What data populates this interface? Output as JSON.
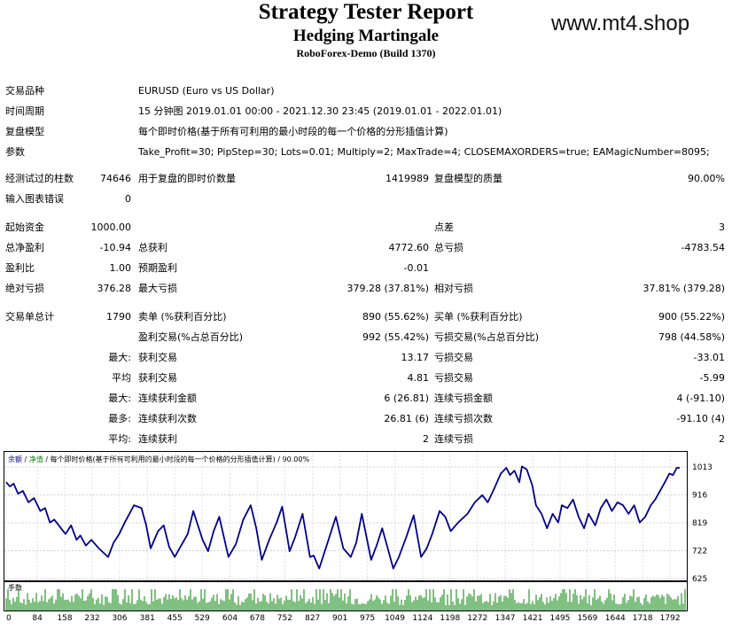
{
  "header": {
    "title": "Strategy Tester Report",
    "ea_name": "Hedging Martingale",
    "server": "RoboForex-Demo (Build 1370)",
    "watermark": "www.mt4.shop"
  },
  "info": {
    "symbol_label": "交易品种",
    "symbol_value": "EURUSD (Euro vs US Dollar)",
    "period_label": "时间周期",
    "period_value": "15 分钟图 2019.01.01 00:00 - 2021.12.30 23:45 (2019.01.01 - 2022.01.01)",
    "model_label": "复盘模型",
    "model_value": "每个即时价格(基于所有可利用的最小时段的每一个价格的分形插值计算)",
    "params_label": "参数",
    "params_value": "Take_Profit=30; PipStep=30; Lots=0.01; Multiply=2; MaxTrade=4; CLOSEMAXORDERS=true; EAMagicNumber=8095;"
  },
  "bars": {
    "bars_label": "经测试过的柱数",
    "bars_value": "74646",
    "ticks_label": "用于复盘的即时价数量",
    "ticks_value": "1419989",
    "quality_label": "复盘模型的质量",
    "quality_value": "90.00%",
    "errors_label": "输入图表错误",
    "errors_value": "0"
  },
  "money": {
    "deposit_label": "起始资金",
    "deposit_value": "1000.00",
    "spread_label": "点差",
    "spread_value": "3",
    "net_label": "总净盈利",
    "net_value": "-10.94",
    "gross_profit_label": "总获利",
    "gross_profit_value": "4772.60",
    "gross_loss_label": "总亏损",
    "gross_loss_value": "-4783.54",
    "pf_label": "盈利比",
    "pf_value": "1.00",
    "payoff_label": "预期盈利",
    "payoff_value": "-0.01",
    "abs_dd_label": "绝对亏损",
    "abs_dd_value": "376.28",
    "max_dd_label": "最大亏损",
    "max_dd_value": "379.28 (37.81%)",
    "rel_dd_label": "相对亏损",
    "rel_dd_value": "37.81% (379.28)"
  },
  "trades": {
    "total_label": "交易单总计",
    "total_value": "1790",
    "short_label": "卖单 (%获利百分比)",
    "short_value": "890 (55.62%)",
    "long_label": "买单 (%获利百分比)",
    "long_value": "900 (55.22%)",
    "win_label": "盈利交易(%占总百分比)",
    "win_value": "992 (55.42%)",
    "loss_label": "亏损交易(%占总百分比)",
    "loss_value": "798 (44.58%)",
    "largest_prefix": "最大:",
    "largest_win_label": "获利交易",
    "largest_win_value": "13.17",
    "largest_loss_label": "亏损交易",
    "largest_loss_value": "-33.01",
    "avg_prefix": "平均",
    "avg_win_label": "获利交易",
    "avg_win_value": "4.81",
    "avg_loss_label": "亏损交易",
    "avg_loss_value": "-5.99",
    "max_consec_prefix": "最大:",
    "max_consec_win_label": "连续获利金额",
    "max_consec_win_value": "6 (26.81)",
    "max_consec_loss_label": "连续亏损金额",
    "max_consec_loss_value": "4 (-91.10)",
    "most_prefix": "最多:",
    "most_win_label": "连续获利次数",
    "most_win_value": "26.81 (6)",
    "most_loss_label": "连续亏损次数",
    "most_loss_value": "-91.10 (4)",
    "avg_consec_prefix": "平均:",
    "avg_consec_win_label": "连续获利",
    "avg_consec_win_value": "2",
    "avg_consec_loss_label": "连续亏损",
    "avg_consec_loss_value": "2"
  },
  "chart_data": {
    "type": "line",
    "legend": {
      "balance": "余额",
      "sep1": " / ",
      "equity": "净值",
      "rest": " / 每个即时价格(基于所有可利用的最小时段的每一个价格的分形插值计算) / 90.00%"
    },
    "volume_label": "手数",
    "ylim": [
      625,
      1013
    ],
    "y_ticks": [
      1013,
      916,
      819,
      722,
      625
    ],
    "x_ticks": [
      0,
      84,
      158,
      232,
      306,
      381,
      455,
      529,
      604,
      678,
      752,
      827,
      901,
      975,
      1049,
      1124,
      1198,
      1272,
      1347,
      1421,
      1495,
      1569,
      1644,
      1718,
      1792
    ],
    "xlim": [
      0,
      1830
    ],
    "colors": {
      "balance": "#00008b",
      "volume": "#008000",
      "legend_balance": "#00008b",
      "legend_equity": "#008000"
    },
    "series": [
      {
        "x": [
          0,
          10,
          20,
          32,
          45,
          60,
          75,
          92,
          105,
          118,
          130,
          160,
          175,
          190,
          200,
          215,
          230,
          250,
          275,
          290,
          305,
          320,
          345,
          365,
          378,
          390,
          410,
          425,
          440,
          455,
          470,
          490,
          505,
          530,
          545,
          560,
          575,
          600,
          620,
          640,
          660,
          675,
          690,
          710,
          730,
          745,
          765,
          780,
          800,
          820,
          830,
          845,
          870,
          890,
          910,
          930,
          945,
          960,
          985,
          1000,
          1015,
          1045,
          1060,
          1080,
          1100,
          1120,
          1135,
          1150,
          1170,
          1185,
          1200,
          1220,
          1245,
          1265,
          1285,
          1300,
          1318,
          1335,
          1350,
          1360,
          1372,
          1385,
          1392,
          1405,
          1420,
          1430,
          1445,
          1460,
          1475,
          1490,
          1500,
          1515,
          1530,
          1545,
          1560,
          1572,
          1590,
          1605,
          1620,
          1635,
          1650,
          1665,
          1680,
          1695,
          1710,
          1725,
          1740,
          1752,
          1765,
          1778,
          1790,
          1800,
          1810,
          1818
        ],
        "y": [
          960,
          945,
          955,
          920,
          930,
          890,
          905,
          860,
          870,
          820,
          830,
          780,
          810,
          760,
          775,
          740,
          760,
          730,
          700,
          750,
          780,
          820,
          880,
          870,
          810,
          730,
          790,
          810,
          735,
          700,
          735,
          780,
          860,
          760,
          720,
          790,
          840,
          700,
          745,
          830,
          880,
          800,
          690,
          760,
          820,
          875,
          720,
          770,
          850,
          700,
          705,
          660,
          760,
          840,
          730,
          700,
          750,
          850,
          690,
          740,
          800,
          660,
          700,
          770,
          845,
          700,
          730,
          780,
          860,
          840,
          790,
          820,
          850,
          890,
          915,
          890,
          940,
          990,
          1010,
          985,
          1000,
          960,
          1015,
          1005,
          950,
          880,
          850,
          800,
          850,
          820,
          880,
          870,
          900,
          840,
          800,
          850,
          810,
          870,
          900,
          860,
          890,
          880,
          850,
          880,
          820,
          840,
          880,
          900,
          930,
          960,
          990,
          985,
          1010,
          1010
        ]
      }
    ]
  }
}
